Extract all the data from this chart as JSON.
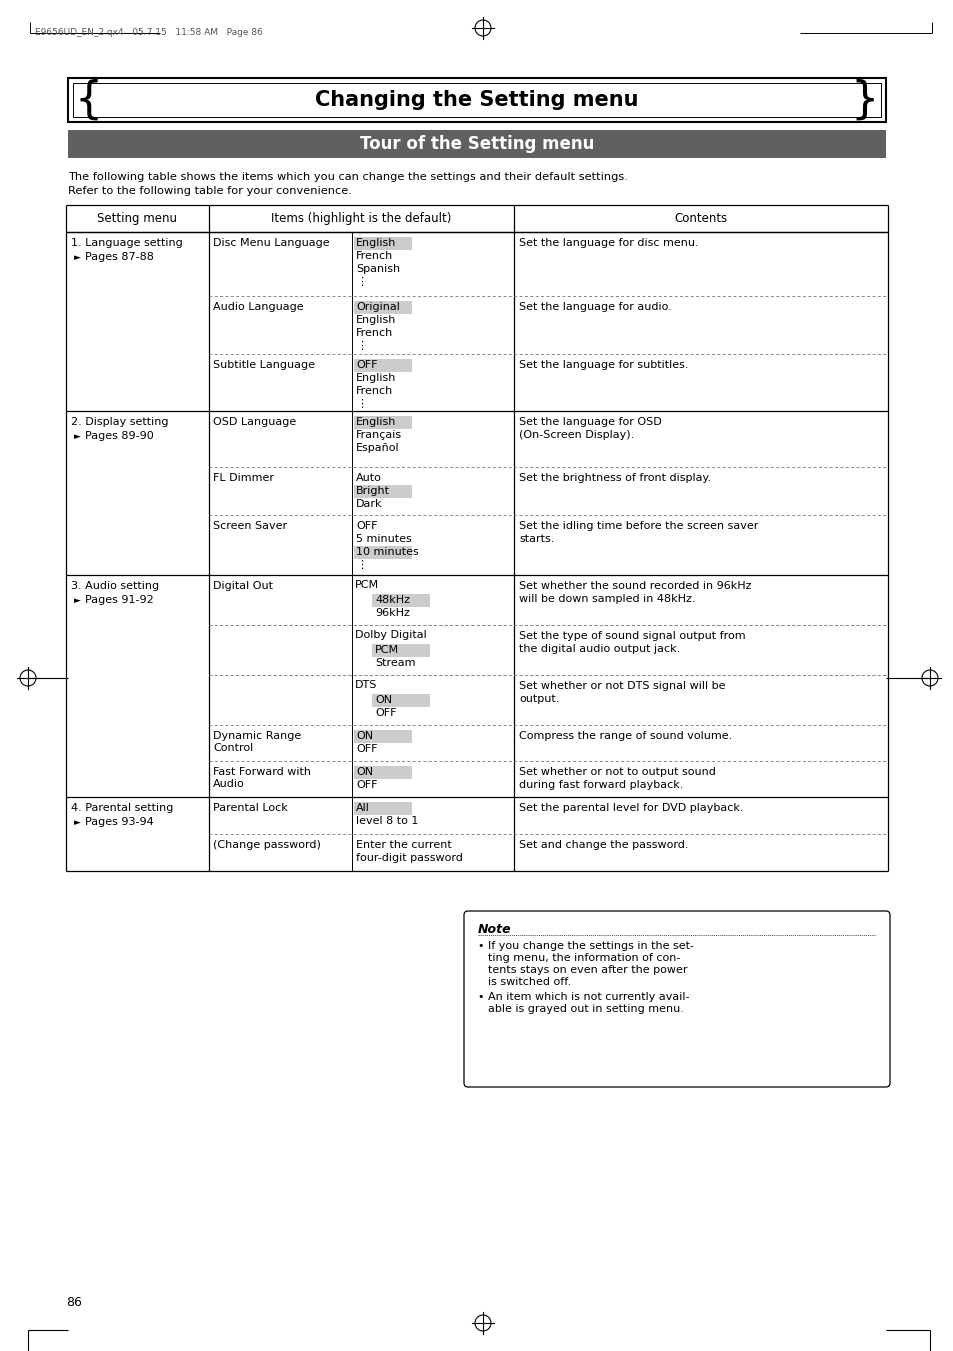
{
  "page_header": "E9656UD_EN_2.qx4   05.7.15   11:58 AM   Page 86",
  "main_title": "Changing the Setting menu",
  "subtitle": "Tour of the Setting menu",
  "intro_line1": "The following table shows the items which you can change the settings and their default settings.",
  "intro_line2": "Refer to the following table for your convenience.",
  "col_headers": [
    "Setting menu",
    "Items (highlight is the default)",
    "Contents"
  ],
  "note_title": "Note",
  "note_bullets": [
    "If you change the settings in the set-\nting menu, the information of con-\ntents stays on even after the power\nis switched off.",
    "An item which is not currently avail-\nable is grayed out in setting menu."
  ],
  "page_number": "86",
  "subtitle_bg": "#606060",
  "highlight_bg": "#cccccc"
}
